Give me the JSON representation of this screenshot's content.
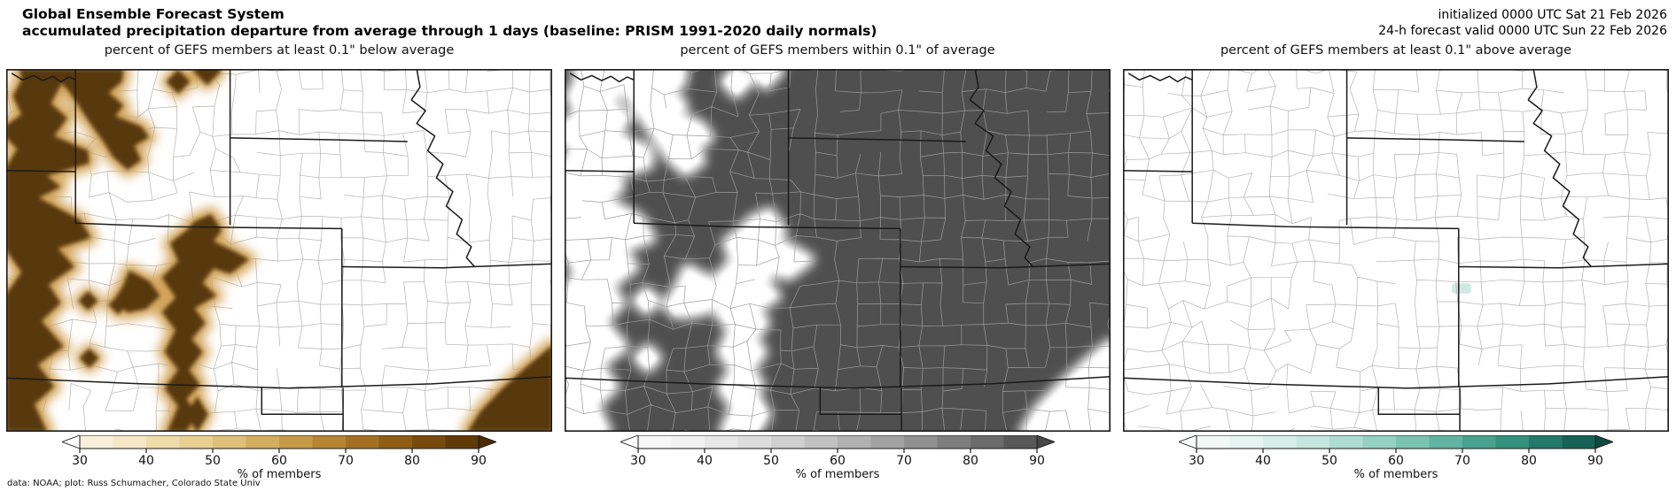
{
  "header": {
    "title_line1": "Global Ensemble Forecast System",
    "title_line2": "accumulated precipitation departure from average through 1 days (baseline: PRISM 1991-2020 daily normals)",
    "init_line": "initialized 0000 UTC Sat 21 Feb 2026",
    "valid_line": "24-h forecast valid 0000 UTC Sun 22 Feb 2026"
  },
  "attribution": "data: NOAA; plot: Russ Schumacher, Colorado State Univ",
  "chart_data": [
    {
      "type": "heatmap",
      "title": "percent of GEFS members at least 0.1\" below average",
      "field_mode": "direct",
      "bg_color": "#ffffff",
      "core_color": "#58380a",
      "fringe_color": "#d3a55c",
      "county_color": "#b3b3b3",
      "counties_over_field": false,
      "seed": 11,
      "colorbar": {
        "ticks": [
          30,
          40,
          50,
          60,
          70,
          80,
          90
        ],
        "label": "% of members",
        "levels": [
          30,
          35,
          40,
          45,
          50,
          55,
          60,
          65,
          70,
          75,
          80,
          85,
          90
        ],
        "colors": [
          "#f8efdb",
          "#f5e7c6",
          "#efdcab",
          "#e8cf92",
          "#dfc07b",
          "#d3ad60",
          "#c59a49",
          "#b68534",
          "#a37023",
          "#8e5d16",
          "#774a0d",
          "#603a07"
        ],
        "under_color": "#ffffff",
        "over_color": "#4a2c04",
        "extend": "both"
      },
      "summary": "high percentages over western Wyoming / Utah border, central Colorado mountains, and the far southeast corner; near zero elsewhere"
    },
    {
      "type": "heatmap",
      "title": "percent of GEFS members within 0.1\" of average",
      "field_mode": "inverse",
      "bg_color": "#4f4f4f",
      "core_color": "#ffffff",
      "fringe_color": "#ffffff",
      "county_color": "#9c9c9c",
      "counties_over_field": true,
      "seed": 22,
      "colorbar": {
        "ticks": [
          30,
          40,
          50,
          60,
          70,
          80,
          90
        ],
        "label": "% of members",
        "levels": [
          30,
          35,
          40,
          45,
          50,
          55,
          60,
          65,
          70,
          75,
          80,
          85,
          90
        ],
        "colors": [
          "#f7f7f7",
          "#f0f0f0",
          "#e7e7e7",
          "#dcdcdc",
          "#cfcfcf",
          "#c1c1c1",
          "#b1b1b1",
          "#a1a1a1",
          "#909090",
          "#7e7e7e",
          "#6b6b6b",
          "#585858"
        ],
        "under_color": "#ffffff",
        "over_color": "#474747",
        "extend": "both"
      },
      "summary": "high percentages (dark gray) nearly everywhere except the mountain west band, central Colorado, and the far southeast corner"
    },
    {
      "type": "heatmap",
      "title": "percent of GEFS members at least 0.1\" above average",
      "field_mode": "spot",
      "bg_color": "#ffffff",
      "core_color": "#cfe9e2",
      "fringe_color": "#e2f2ee",
      "county_color": "#b3b3b3",
      "counties_over_field": true,
      "seed": 33,
      "spot": {
        "x": 0.62,
        "y": 0.605,
        "w": 0.035,
        "h": 0.028
      },
      "colorbar": {
        "ticks": [
          30,
          40,
          50,
          60,
          70,
          80,
          90
        ],
        "label": "% of members",
        "levels": [
          30,
          35,
          40,
          45,
          50,
          55,
          60,
          65,
          70,
          75,
          80,
          85,
          90
        ],
        "colors": [
          "#f0f9f6",
          "#e5f4f0",
          "#d7eee8",
          "#c5e6de",
          "#afdcd2",
          "#96d0c3",
          "#7cc2b2",
          "#62b3a1",
          "#48a28e",
          "#33907c",
          "#23796a",
          "#176156"
        ],
        "under_color": "#ffffff",
        "over_color": "#0f4a41",
        "extend": "both"
      },
      "summary": "near-zero percentages everywhere; one faint light-teal patch in west-central Kansas"
    }
  ],
  "map": {
    "frame_color": "#1a1a1a",
    "state_line_color": "#1a1a1a",
    "state_lines": [
      [
        [
          0.127,
          0.0
        ],
        [
          0.127,
          0.425
        ]
      ],
      [
        [
          0.127,
          0.425
        ],
        [
          0.3,
          0.435
        ],
        [
          0.615,
          0.44
        ]
      ],
      [
        [
          0.41,
          0.0
        ],
        [
          0.41,
          0.43
        ]
      ],
      [
        [
          0.0,
          0.28
        ],
        [
          0.127,
          0.283
        ]
      ],
      [
        [
          0.41,
          0.19
        ],
        [
          0.6,
          0.195
        ],
        [
          0.735,
          0.2
        ]
      ],
      [
        [
          0.615,
          0.44
        ],
        [
          0.615,
          0.878
        ]
      ],
      [
        [
          0.615,
          0.545
        ],
        [
          0.8,
          0.548
        ],
        [
          1.0,
          0.537
        ]
      ],
      [
        [
          0.0,
          0.852
        ],
        [
          0.25,
          0.868
        ],
        [
          0.52,
          0.88
        ],
        [
          0.78,
          0.868
        ],
        [
          1.0,
          0.848
        ]
      ],
      [
        [
          0.468,
          0.878
        ],
        [
          0.468,
          0.952
        ],
        [
          0.617,
          0.952
        ]
      ],
      [
        [
          0.617,
          0.879
        ],
        [
          0.617,
          1.0
        ]
      ],
      [
        [
          0.752,
          0.0
        ],
        [
          0.758,
          0.05
        ],
        [
          0.742,
          0.085
        ]
      ],
      [
        [
          0.742,
          0.085
        ],
        [
          0.768,
          0.115
        ],
        [
          0.752,
          0.15
        ],
        [
          0.785,
          0.185
        ],
        [
          0.772,
          0.225
        ],
        [
          0.8,
          0.262
        ],
        [
          0.788,
          0.3
        ],
        [
          0.818,
          0.338
        ],
        [
          0.806,
          0.378
        ],
        [
          0.835,
          0.415
        ],
        [
          0.825,
          0.455
        ],
        [
          0.852,
          0.49
        ],
        [
          0.843,
          0.52
        ],
        [
          0.858,
          0.545
        ]
      ],
      [
        [
          0.01,
          0.012
        ],
        [
          0.03,
          0.03
        ],
        [
          0.05,
          0.018
        ],
        [
          0.068,
          0.032
        ],
        [
          0.085,
          0.02
        ],
        [
          0.1,
          0.035
        ],
        [
          0.115,
          0.022
        ],
        [
          0.127,
          0.03
        ]
      ]
    ],
    "anomaly_polygons": [
      [
        [
          0.025,
          0.0
        ],
        [
          0.105,
          0.0
        ],
        [
          0.1,
          0.045
        ],
        [
          0.082,
          0.095
        ],
        [
          0.112,
          0.135
        ],
        [
          0.088,
          0.185
        ],
        [
          0.15,
          0.225
        ],
        [
          0.152,
          0.26
        ],
        [
          0.075,
          0.295
        ],
        [
          0.1,
          0.325
        ],
        [
          0.06,
          0.355
        ],
        [
          0.135,
          0.415
        ],
        [
          0.155,
          0.465
        ],
        [
          0.095,
          0.495
        ],
        [
          0.125,
          0.545
        ],
        [
          0.078,
          0.595
        ],
        [
          0.1,
          0.645
        ],
        [
          0.065,
          0.695
        ],
        [
          0.105,
          0.765
        ],
        [
          0.058,
          0.815
        ],
        [
          0.088,
          0.875
        ],
        [
          0.052,
          0.925
        ],
        [
          0.075,
          1.0
        ],
        [
          0.0,
          1.0
        ],
        [
          0.0,
          0.62
        ],
        [
          0.028,
          0.56
        ],
        [
          0.0,
          0.5
        ],
        [
          0.0,
          0.27
        ],
        [
          0.02,
          0.22
        ],
        [
          0.0,
          0.19
        ],
        [
          0.0,
          0.155
        ],
        [
          0.028,
          0.125
        ],
        [
          0.012,
          0.075
        ],
        [
          0.028,
          0.03
        ]
      ],
      [
        [
          0.095,
          0.0
        ],
        [
          0.215,
          0.0
        ],
        [
          0.212,
          0.035
        ],
        [
          0.188,
          0.065
        ],
        [
          0.215,
          0.1
        ],
        [
          0.2,
          0.13
        ],
        [
          0.247,
          0.158
        ],
        [
          0.262,
          0.188
        ],
        [
          0.235,
          0.212
        ],
        [
          0.247,
          0.252
        ],
        [
          0.222,
          0.278
        ],
        [
          0.196,
          0.243
        ],
        [
          0.176,
          0.196
        ],
        [
          0.153,
          0.148
        ],
        [
          0.132,
          0.1
        ],
        [
          0.113,
          0.058
        ],
        [
          0.098,
          0.035
        ]
      ],
      [
        [
          0.375,
          0.4
        ],
        [
          0.395,
          0.445
        ],
        [
          0.38,
          0.475
        ],
        [
          0.415,
          0.5
        ],
        [
          0.445,
          0.525
        ],
        [
          0.41,
          0.565
        ],
        [
          0.38,
          0.55
        ],
        [
          0.36,
          0.59
        ],
        [
          0.385,
          0.625
        ],
        [
          0.345,
          0.66
        ],
        [
          0.365,
          0.7
        ],
        [
          0.34,
          0.745
        ],
        [
          0.36,
          0.78
        ],
        [
          0.335,
          0.83
        ],
        [
          0.355,
          0.87
        ],
        [
          0.33,
          0.91
        ],
        [
          0.35,
          0.95
        ],
        [
          0.33,
          1.0
        ],
        [
          0.295,
          1.0
        ],
        [
          0.315,
          0.93
        ],
        [
          0.29,
          0.88
        ],
        [
          0.315,
          0.83
        ],
        [
          0.29,
          0.78
        ],
        [
          0.31,
          0.72
        ],
        [
          0.285,
          0.67
        ],
        [
          0.31,
          0.63
        ],
        [
          0.285,
          0.575
        ],
        [
          0.315,
          0.53
        ],
        [
          0.3,
          0.48
        ],
        [
          0.33,
          0.445
        ],
        [
          0.345,
          0.42
        ]
      ],
      [
        [
          0.225,
          0.555
        ],
        [
          0.262,
          0.585
        ],
        [
          0.282,
          0.625
        ],
        [
          0.256,
          0.662
        ],
        [
          0.222,
          0.672
        ],
        [
          0.198,
          0.636
        ],
        [
          0.214,
          0.598
        ]
      ],
      [
        [
          1.0,
          0.762
        ],
        [
          0.952,
          0.822
        ],
        [
          0.908,
          0.882
        ],
        [
          0.868,
          0.945
        ],
        [
          0.845,
          1.0
        ],
        [
          1.0,
          1.0
        ]
      ]
    ],
    "anomaly_diamonds": [
      [
        0.315,
        0.035,
        0.022,
        0.034
      ],
      [
        0.368,
        0.005,
        0.026,
        0.04
      ],
      [
        0.15,
        0.639,
        0.018,
        0.027
      ],
      [
        0.205,
        0.65,
        0.018,
        0.027
      ],
      [
        0.152,
        0.797,
        0.018,
        0.027
      ],
      [
        0.35,
        0.952,
        0.02,
        0.05
      ]
    ]
  }
}
